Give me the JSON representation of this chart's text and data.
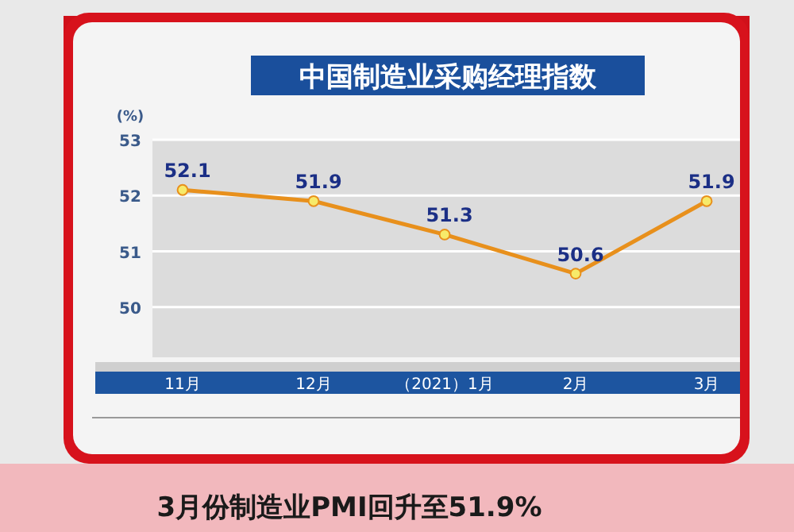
{
  "chart_data": {
    "type": "line",
    "title": "中国制造业采购经理指数",
    "ylabel": "(%)",
    "categories": [
      "11月",
      "12月",
      "（2021）1月",
      "2月",
      "3月"
    ],
    "series": [
      {
        "color": "#e8901c",
        "values": [
          52.1,
          51.9,
          51.3,
          50.6,
          51.9
        ]
      }
    ],
    "ylim": [
      49.1,
      53
    ],
    "yticks": [
      50,
      51,
      52,
      53
    ],
    "grid": "y",
    "marker": "circle",
    "data_labels": true,
    "annotations": [
      "3月份制造业PMI回升至51.9%"
    ]
  }
}
